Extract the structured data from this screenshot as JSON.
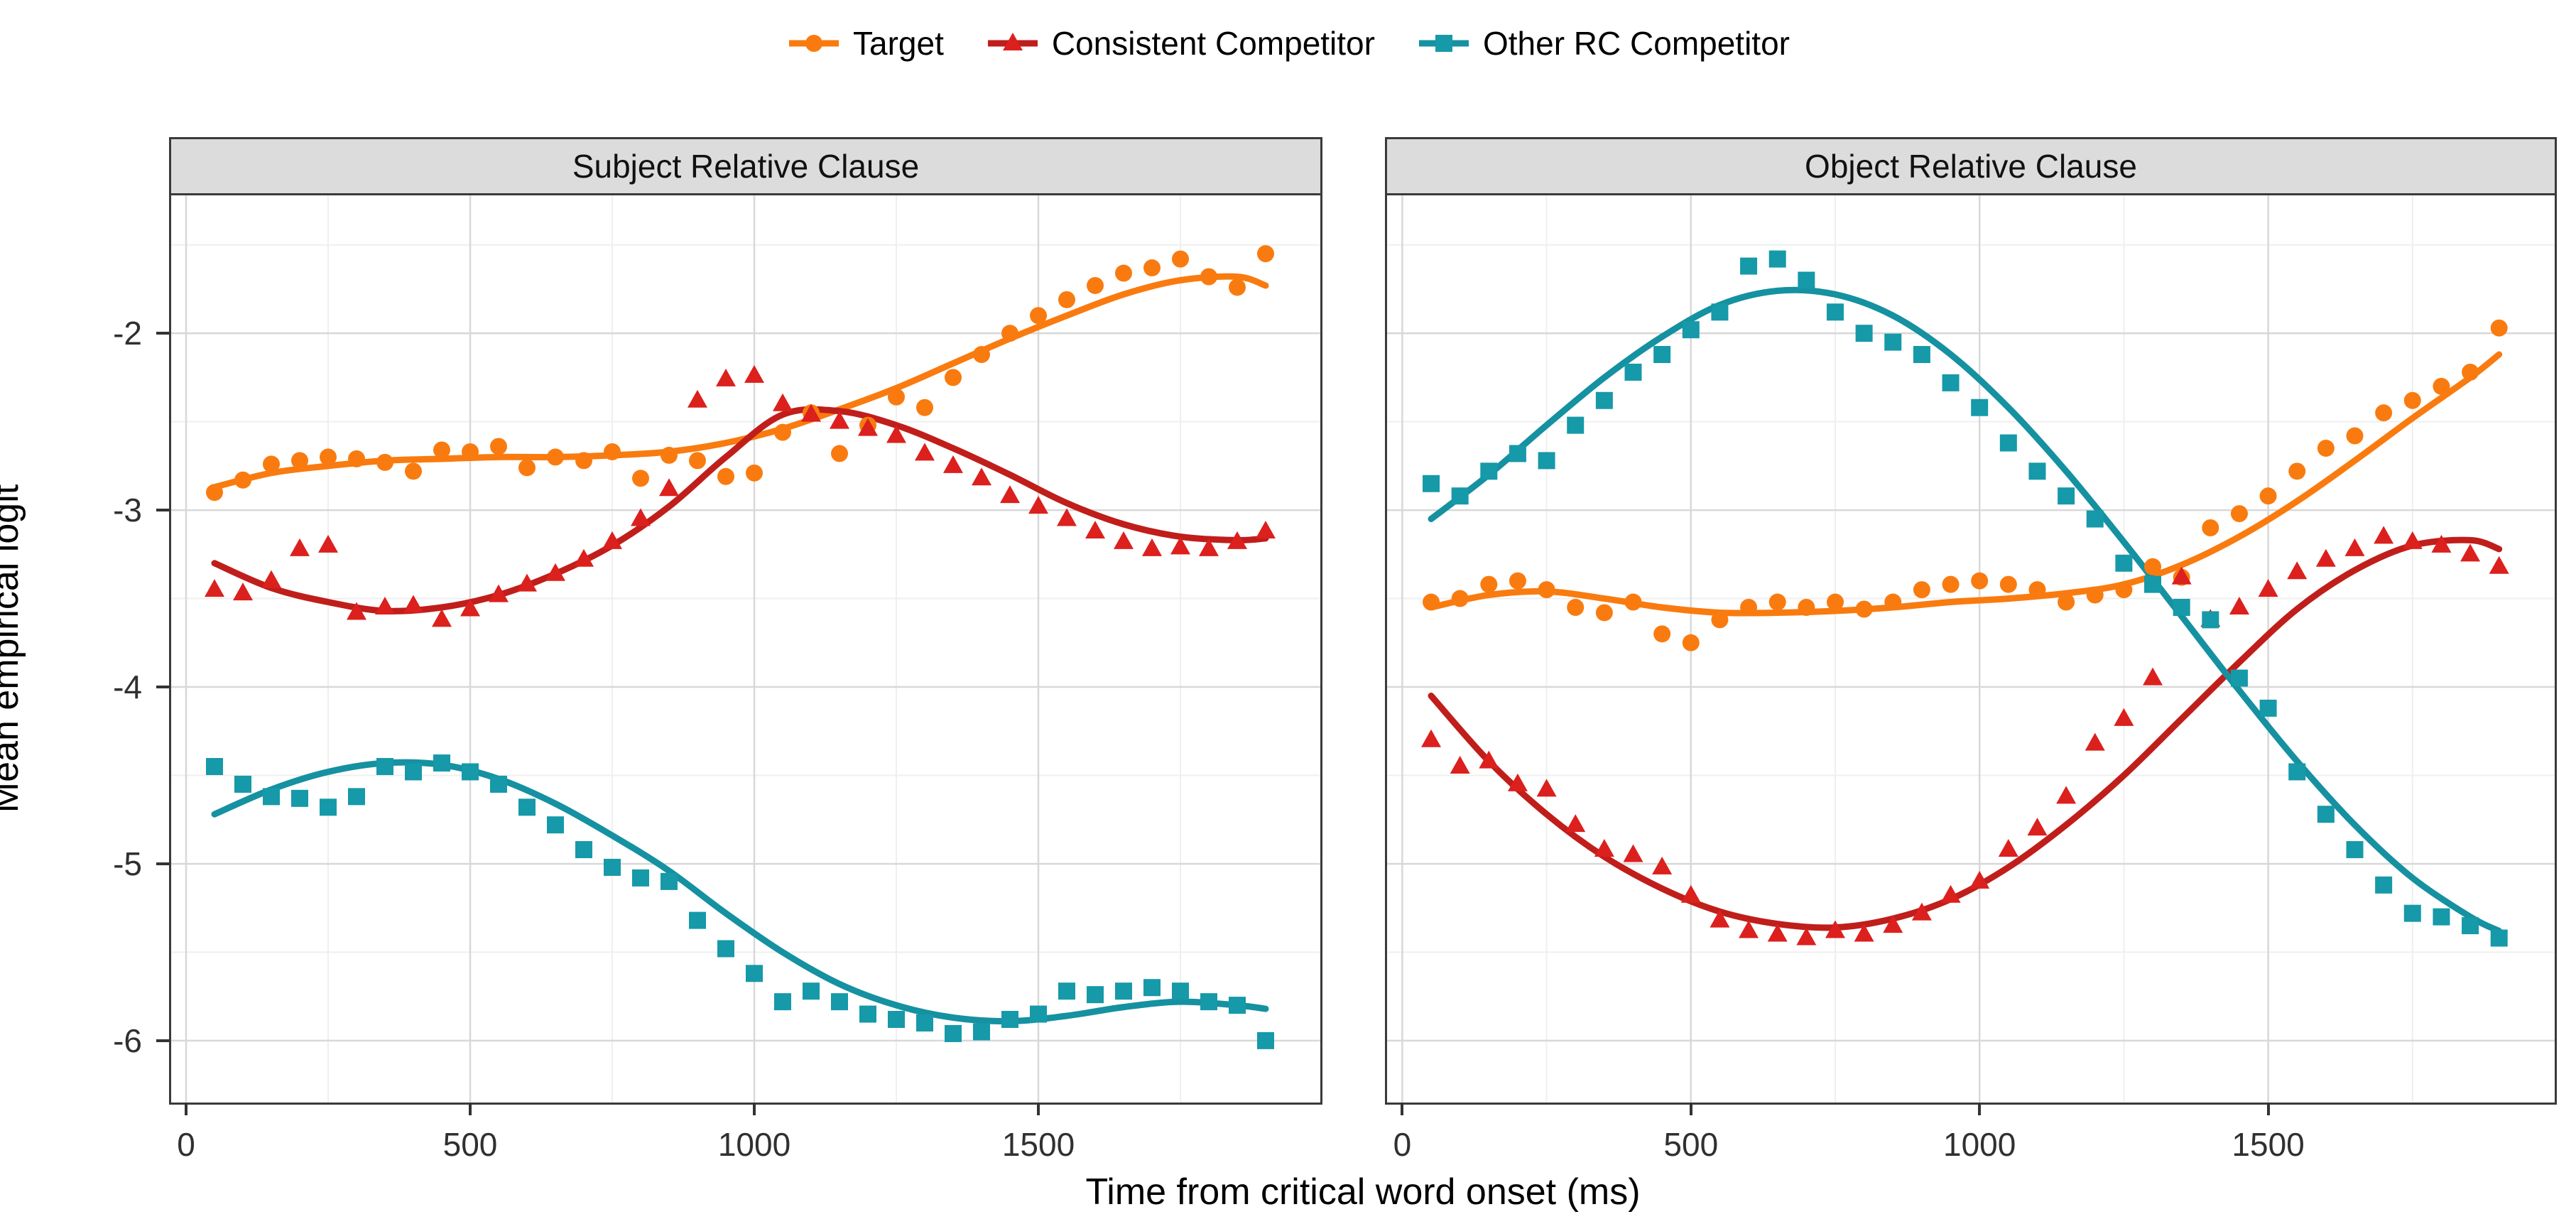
{
  "legend": {
    "items": [
      {
        "label": "Target",
        "marker": "circle",
        "color": "#F97B0F",
        "line_color": "#F97B0F"
      },
      {
        "label": "Consistent Competitor",
        "marker": "triangle",
        "color": "#DC201D",
        "line_color": "#C01E1B"
      },
      {
        "label": "Other RC Competitor",
        "marker": "square",
        "color": "#1699A8",
        "line_color": "#1591A1"
      }
    ]
  },
  "axes": {
    "x": {
      "title": "Time from critical word onset (ms)",
      "ticks": [
        0,
        500,
        1000,
        1500
      ],
      "minor": [
        250,
        750,
        1250,
        1750
      ],
      "range": [
        -30,
        2000
      ]
    },
    "y": {
      "title": "Mean empirical logit",
      "ticks": [
        -2,
        -3,
        -4,
        -5,
        -6
      ],
      "minor": [
        -1.5,
        -2.5,
        -3.5,
        -4.5,
        -5.5
      ],
      "range": [
        -6.35,
        -1.22
      ]
    }
  },
  "style": {
    "grid_major": "#D8D8D8",
    "grid_minor": "#EFEFEF",
    "panel_border": "#3a3a3a",
    "strip_bg": "#DCDCDC",
    "tick_color": "#333333"
  },
  "chart_data": {
    "type": "scatter",
    "subtype": "faceted scatter with smoothed trend lines (GAM), 50 ms bins",
    "xlabel": "Time from critical word onset (ms)",
    "ylabel": "Mean empirical logit",
    "x_start": 50,
    "x_step": 50,
    "curve_x": [
      50,
      150,
      250,
      350,
      450,
      550,
      650,
      750,
      850,
      950,
      1050,
      1150,
      1250,
      1350,
      1450,
      1550,
      1650,
      1750,
      1850,
      1900
    ],
    "panels": [
      {
        "title": "Subject Relative Clause",
        "series": [
          {
            "name": "Target",
            "marker": "circle",
            "marker_color": "#F97B0F",
            "line_color": "#F97B0F",
            "points": [
              -2.9,
              -2.83,
              -2.74,
              -2.72,
              -2.7,
              -2.71,
              -2.73,
              -2.78,
              -2.66,
              -2.67,
              -2.64,
              -2.76,
              -2.7,
              -2.72,
              -2.67,
              -2.82,
              -2.69,
              -2.72,
              -2.81,
              -2.79,
              -2.56,
              -2.45,
              -2.68,
              -2.52,
              -2.36,
              -2.42,
              -2.25,
              -2.12,
              -2.0,
              -1.9,
              -1.81,
              -1.73,
              -1.66,
              -1.63,
              -1.58,
              -1.68,
              -1.74,
              -1.55
            ],
            "curve": [
              -2.87,
              -2.79,
              -2.75,
              -2.72,
              -2.71,
              -2.7,
              -2.7,
              -2.69,
              -2.67,
              -2.62,
              -2.54,
              -2.43,
              -2.31,
              -2.17,
              -2.03,
              -1.9,
              -1.78,
              -1.7,
              -1.68,
              -1.73
            ]
          },
          {
            "name": "Consistent Competitor",
            "marker": "triangle",
            "marker_color": "#DC201D",
            "line_color": "#C01E1B",
            "points": [
              -3.45,
              -3.47,
              -3.4,
              -3.22,
              -3.2,
              -3.58,
              -3.55,
              -3.54,
              -3.62,
              -3.56,
              -3.48,
              -3.42,
              -3.36,
              -3.28,
              -3.18,
              -3.05,
              -2.88,
              -2.38,
              -2.26,
              -2.24,
              -2.4,
              -2.46,
              -2.5,
              -2.54,
              -2.58,
              -2.68,
              -2.75,
              -2.82,
              -2.92,
              -2.98,
              -3.05,
              -3.12,
              -3.18,
              -3.22,
              -3.21,
              -3.22,
              -3.18,
              -3.12
            ],
            "curve": [
              -3.3,
              -3.44,
              -3.52,
              -3.57,
              -3.55,
              -3.48,
              -3.36,
              -3.2,
              -2.98,
              -2.7,
              -2.46,
              -2.44,
              -2.52,
              -2.65,
              -2.8,
              -2.96,
              -3.08,
              -3.15,
              -3.17,
              -3.16
            ]
          },
          {
            "name": "Other RC Competitor",
            "marker": "square",
            "marker_color": "#1699A8",
            "line_color": "#1591A1",
            "points": [
              -4.45,
              -4.55,
              -4.62,
              -4.63,
              -4.68,
              -4.62,
              -4.45,
              -4.48,
              -4.43,
              -4.48,
              -4.55,
              -4.68,
              -4.78,
              -4.92,
              -5.02,
              -5.08,
              -5.1,
              -5.32,
              -5.48,
              -5.62,
              -5.78,
              -5.72,
              -5.78,
              -5.85,
              -5.88,
              -5.9,
              -5.96,
              -5.95,
              -5.88,
              -5.85,
              -5.72,
              -5.74,
              -5.72,
              -5.7,
              -5.72,
              -5.78,
              -5.8,
              -6.0
            ],
            "curve": [
              -4.72,
              -4.58,
              -4.48,
              -4.43,
              -4.44,
              -4.52,
              -4.66,
              -4.84,
              -5.04,
              -5.28,
              -5.5,
              -5.68,
              -5.8,
              -5.87,
              -5.89,
              -5.86,
              -5.81,
              -5.78,
              -5.8,
              -5.82
            ]
          }
        ]
      },
      {
        "title": "Object Relative Clause",
        "series": [
          {
            "name": "Target",
            "marker": "circle",
            "marker_color": "#F97B0F",
            "line_color": "#F97B0F",
            "points": [
              -3.52,
              -3.5,
              -3.42,
              -3.4,
              -3.45,
              -3.55,
              -3.58,
              -3.52,
              -3.7,
              -3.75,
              -3.62,
              -3.55,
              -3.52,
              -3.55,
              -3.52,
              -3.56,
              -3.52,
              -3.45,
              -3.42,
              -3.4,
              -3.42,
              -3.45,
              -3.52,
              -3.48,
              -3.45,
              -3.32,
              -3.38,
              -3.1,
              -3.02,
              -2.92,
              -2.78,
              -2.65,
              -2.58,
              -2.45,
              -2.38,
              -2.3,
              -2.22,
              -1.97
            ],
            "curve": [
              -3.55,
              -3.48,
              -3.46,
              -3.5,
              -3.55,
              -3.58,
              -3.58,
              -3.57,
              -3.55,
              -3.52,
              -3.5,
              -3.47,
              -3.42,
              -3.31,
              -3.15,
              -2.95,
              -2.72,
              -2.48,
              -2.25,
              -2.12
            ]
          },
          {
            "name": "Consistent Competitor",
            "marker": "triangle",
            "marker_color": "#DC201D",
            "line_color": "#C01E1B",
            "points": [
              -4.3,
              -4.45,
              -4.42,
              -4.55,
              -4.58,
              -4.78,
              -4.92,
              -4.95,
              -5.02,
              -5.18,
              -5.32,
              -5.38,
              -5.4,
              -5.42,
              -5.38,
              -5.4,
              -5.35,
              -5.28,
              -5.18,
              -5.1,
              -4.92,
              -4.8,
              -4.62,
              -4.32,
              -4.18,
              -3.95,
              -3.38,
              -3.62,
              -3.55,
              -3.45,
              -3.35,
              -3.28,
              -3.22,
              -3.15,
              -3.18,
              -3.2,
              -3.25,
              -3.32
            ],
            "curve": [
              -4.05,
              -4.42,
              -4.72,
              -4.96,
              -5.14,
              -5.27,
              -5.34,
              -5.36,
              -5.31,
              -5.2,
              -5.02,
              -4.78,
              -4.5,
              -4.18,
              -3.86,
              -3.56,
              -3.34,
              -3.2,
              -3.17,
              -3.22
            ]
          },
          {
            "name": "Other RC Competitor",
            "marker": "square",
            "marker_color": "#1699A8",
            "line_color": "#1591A1",
            "points": [
              -2.85,
              -2.92,
              -2.78,
              -2.68,
              -2.72,
              -2.52,
              -2.38,
              -2.22,
              -2.12,
              -1.98,
              -1.88,
              -1.62,
              -1.58,
              -1.7,
              -1.88,
              -2.0,
              -2.05,
              -2.12,
              -2.28,
              -2.42,
              -2.62,
              -2.78,
              -2.92,
              -3.05,
              -3.3,
              -3.42,
              -3.55,
              -3.62,
              -3.95,
              -4.12,
              -4.48,
              -4.72,
              -4.92,
              -5.12,
              -5.28,
              -5.3,
              -5.35,
              -5.42
            ],
            "curve": [
              -3.05,
              -2.8,
              -2.52,
              -2.25,
              -2.02,
              -1.84,
              -1.76,
              -1.78,
              -1.9,
              -2.12,
              -2.42,
              -2.78,
              -3.18,
              -3.6,
              -4.02,
              -4.42,
              -4.78,
              -5.08,
              -5.3,
              -5.38
            ]
          }
        ]
      }
    ]
  }
}
